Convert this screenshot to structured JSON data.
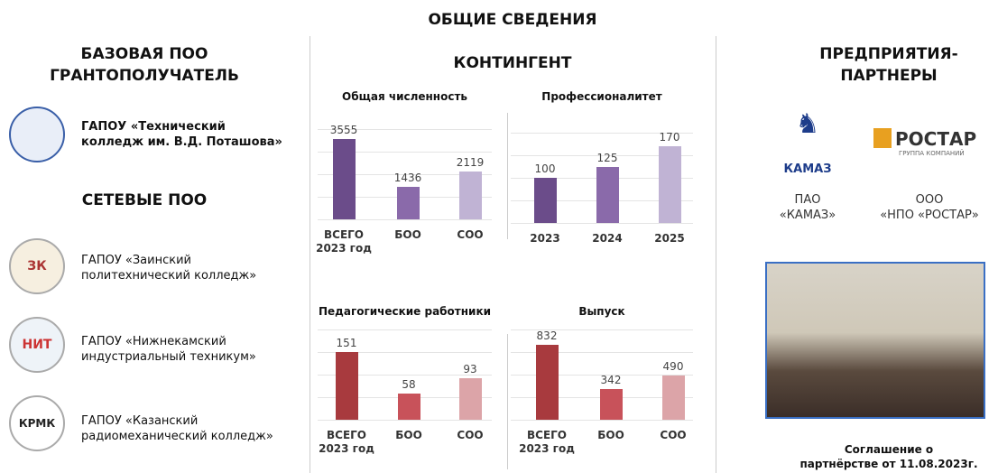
{
  "title": "ОБЩИЕ СВЕДЕНИЯ",
  "left": {
    "heading": "БАЗОВАЯ ПОО\nГРАНТОПОЛУЧАТЕЛЬ",
    "base": "ГАПОУ «Технический\nколледж им. В.Д. Поташова»",
    "network_heading": "СЕТЕВЫЕ ПОО",
    "network": [
      "ГАПОУ «Заинский\nполитехнический колледж»",
      "ГАПОУ «Нижнекамский\nиндустриальный техникум»",
      "ГАПОУ «Казанский\nрадиомеханический колледж»"
    ],
    "logos": [
      "ЗК",
      "НИТ",
      "КРМК"
    ]
  },
  "center": {
    "heading": "КОНТИНГЕНТ"
  },
  "right": {
    "heading": "ПРЕДПРИЯТИЯ-\nПАРТНЕРЫ",
    "partners": [
      {
        "logo": "КАМАЗ",
        "name": "ПАО\n«КАМАЗ»"
      },
      {
        "logo": "РОСТАР",
        "sublogo": "ГРУППА КОМПАНИЙ",
        "name": "ООО\n«НПО «РОСТАР»"
      }
    ],
    "caption": "Соглашение о\nпартнёрстве от 11.08.2023г."
  },
  "chart_data": [
    {
      "type": "bar",
      "title": "Общая численность",
      "categories": [
        "ВСЕГО\n2023 год",
        "БОО",
        "СОО"
      ],
      "values": [
        3555,
        1436,
        2119
      ],
      "colors": [
        "#6b4c8a",
        "#8a6aaa",
        "#c0b3d4"
      ],
      "ylim": [
        0,
        4000
      ],
      "yticks": [
        0,
        1000,
        2000,
        3000,
        4000
      ],
      "grid": true
    },
    {
      "type": "bar",
      "title": "Профессионалитет",
      "categories": [
        "2023",
        "2024",
        "2025"
      ],
      "values": [
        100,
        125,
        170
      ],
      "colors": [
        "#6b4c8a",
        "#8a6aaa",
        "#c0b3d4"
      ],
      "ylim": [
        0,
        200
      ],
      "yticks": [
        0,
        50,
        100,
        150,
        200
      ],
      "grid": true
    },
    {
      "type": "bar",
      "title": "Педагогические работники",
      "categories": [
        "ВСЕГО\n2023 год",
        "БОО",
        "СОО"
      ],
      "values": [
        151,
        58,
        93
      ],
      "colors": [
        "#a83a3e",
        "#c8525a",
        "#dca4a8"
      ],
      "ylim": [
        0,
        200
      ],
      "yticks": [
        0,
        50,
        100,
        150,
        200
      ],
      "grid": true
    },
    {
      "type": "bar",
      "title": "Выпуск",
      "categories": [
        "ВСЕГО\n2023 год",
        "БОО",
        "СОО"
      ],
      "values": [
        832,
        342,
        490
      ],
      "colors": [
        "#a83a3e",
        "#c8525a",
        "#dca4a8"
      ],
      "ylim": [
        0,
        1000
      ],
      "yticks": [
        0,
        250,
        500,
        750,
        1000
      ],
      "grid": true
    }
  ]
}
